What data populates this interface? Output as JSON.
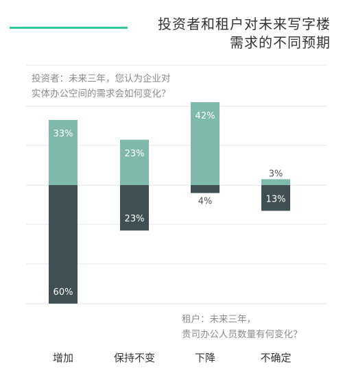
{
  "header": {
    "title_line1": "投资者和租户对未来写字楼",
    "title_line2": "需求的不同预期"
  },
  "questions": {
    "investor": "投资者：未来三年，您认为企业对实体办公空间的需求会如何变化？",
    "investor_line1": "投资者：未来三年，您认为企业对",
    "investor_line2": "实体办公空间的需求会如何变化？",
    "tenant_line1": "租户：未来三年，",
    "tenant_line2": "贵司办公人员数量有何变化？"
  },
  "colors": {
    "investor_bar": "#7fb9a9",
    "tenant_bar": "#3f4f53",
    "accent": "#2fc69a",
    "grid": "#e6e6e6"
  },
  "chart_data": {
    "type": "bar",
    "subtype": "diverging-stacked",
    "categories": [
      "增加",
      "保持不变",
      "下降",
      "不确定"
    ],
    "series": [
      {
        "name": "投资者",
        "values": [
          33,
          23,
          42,
          3
        ],
        "direction": "up",
        "labels": [
          "33%",
          "23%",
          "42%",
          "3%"
        ]
      },
      {
        "name": "租户",
        "values": [
          60,
          23,
          4,
          13
        ],
        "direction": "down",
        "labels": [
          "60%",
          "23%",
          "4%",
          "13%"
        ]
      }
    ],
    "grid": true,
    "title": "投资者和租户对未来写字楼需求的不同预期"
  }
}
